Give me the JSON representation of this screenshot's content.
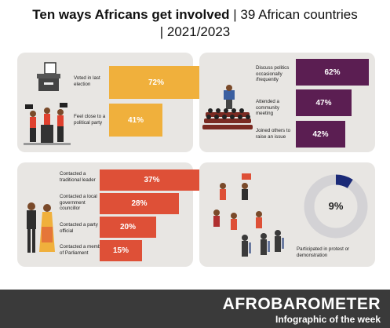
{
  "title": {
    "bold": "Ten ways Africans get involved",
    "line1_rest": " | 39 African countries",
    "line2": "| 2021/2023"
  },
  "colors": {
    "orange": "#f0b03c",
    "purple": "#5b1e52",
    "red": "#de5037",
    "navy": "#1b2a78",
    "ring": "#d3d2d5",
    "panel": "#e8e6e3"
  },
  "voting": {
    "items": [
      {
        "label": "Voted in last election",
        "value": 72,
        "text": "72%"
      },
      {
        "label": "Feel close to a political party",
        "value": 41,
        "text": "41%"
      }
    ]
  },
  "community": {
    "items": [
      {
        "label": "Discuss politics occasionally /frequently",
        "value": 62,
        "text": "62%"
      },
      {
        "label": "Attended a community meeting",
        "value": 47,
        "text": "47%"
      },
      {
        "label": "Joined others to raise an issue",
        "value": 42,
        "text": "42%"
      }
    ]
  },
  "contact": {
    "items": [
      {
        "label": "Contacted a traditional leader",
        "value": 37,
        "text": "37%"
      },
      {
        "label": "Contacted a local government councillor",
        "value": 28,
        "text": "28%"
      },
      {
        "label": "Contacted a party official",
        "value": 20,
        "text": "20%"
      },
      {
        "label": "Contacted a member of Parliament",
        "value": 15,
        "text": "15%"
      }
    ]
  },
  "protest": {
    "value": 9,
    "text": "9%",
    "label": "Participated in protest or demonstration"
  },
  "footer": {
    "brand": "AFROBAROMETER",
    "tagline": "Infographic of the week"
  },
  "icons": [
    "ballot-box-icon",
    "candidates-icon",
    "meeting-audience-icon",
    "contact-people-icon",
    "protesters-icon"
  ]
}
